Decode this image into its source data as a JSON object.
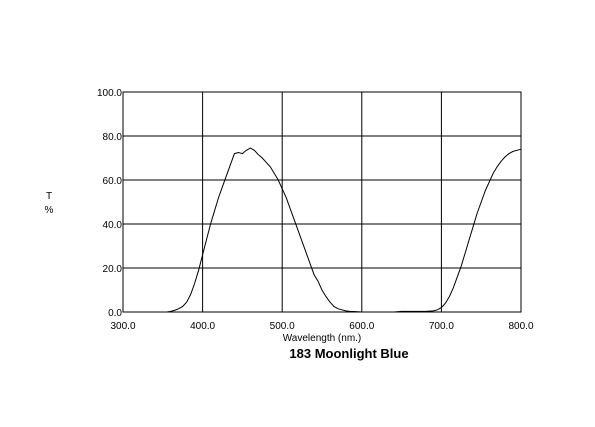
{
  "chart_data": {
    "type": "line",
    "title": "183 Moonlight Blue",
    "xlabel": "Wavelength (nm.)",
    "ylabel": "T\n%",
    "xlim": [
      300,
      800
    ],
    "ylim": [
      0,
      100
    ],
    "grid": true,
    "x_ticks": [
      "300.0",
      "400.0",
      "500.0",
      "600.0",
      "700.0",
      "800.0"
    ],
    "y_ticks": [
      "0.0",
      "20.0",
      "40.0",
      "60.0",
      "80.0",
      "100.0"
    ],
    "line_color": "#000000",
    "series": [
      {
        "x": [
          300,
          355,
          360,
          365,
          370,
          375,
          380,
          385,
          390,
          395,
          400,
          405,
          410,
          415,
          420,
          425,
          430,
          435,
          440,
          445,
          450,
          455,
          460,
          465,
          470,
          475,
          480,
          485,
          490,
          495,
          500,
          505,
          510,
          515,
          520,
          525,
          530,
          535,
          540,
          545,
          550,
          555,
          560,
          565,
          570,
          575,
          580,
          585,
          590,
          595,
          600,
          605,
          610,
          620,
          630,
          640,
          650,
          660,
          670,
          680,
          690,
          695,
          700,
          705,
          710,
          715,
          720,
          725,
          730,
          735,
          740,
          745,
          750,
          755,
          760,
          765,
          770,
          775,
          780,
          785,
          790,
          795,
          800
        ],
        "y": [
          0,
          0,
          0.3,
          0.8,
          1.5,
          2.5,
          4.5,
          8,
          13,
          19,
          26,
          33,
          40,
          46,
          52,
          57,
          62,
          67,
          72,
          72.5,
          72,
          73.5,
          74.5,
          73.5,
          71.5,
          70,
          68,
          66,
          63,
          60,
          56,
          52,
          47,
          42,
          37,
          32,
          27,
          22,
          17,
          14,
          10,
          7,
          4.5,
          2.5,
          1.5,
          1,
          0.5,
          0.3,
          0.2,
          0.1,
          0,
          0,
          0,
          0,
          0,
          0,
          0.3,
          0.3,
          0.3,
          0.3,
          0.5,
          1,
          2,
          4,
          7,
          11,
          16,
          21,
          27,
          33,
          39,
          45,
          50,
          55,
          59,
          63,
          66,
          68.5,
          70.5,
          72,
          73,
          73.5,
          74
        ]
      }
    ]
  }
}
